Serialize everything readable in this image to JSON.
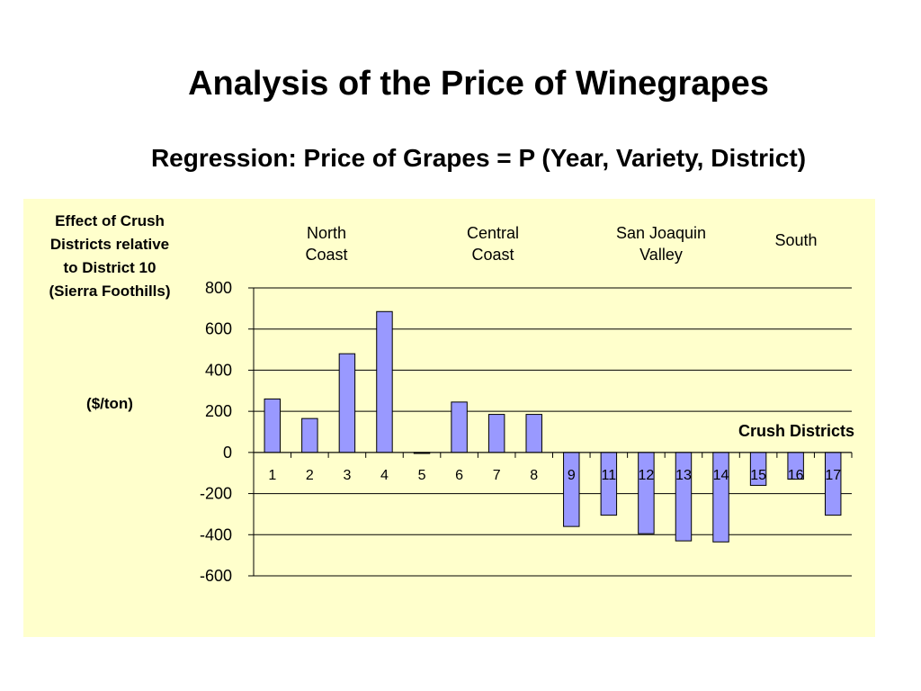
{
  "slide": {
    "title": "Analysis of the Price of Winegrapes",
    "subtitle": "Regression: Price of Grapes = P (Year, Variety, District)"
  },
  "chart_data": {
    "type": "bar",
    "ylabel": "Effect of Crush Districts relative to District 10 (Sierra Foothills)",
    "yunit": "($/ton)",
    "xlabel": "Crush Districts",
    "categories": [
      "1",
      "2",
      "3",
      "4",
      "5",
      "6",
      "7",
      "8",
      "9",
      "11",
      "12",
      "13",
      "14",
      "15",
      "16",
      "17"
    ],
    "values": [
      260,
      165,
      480,
      685,
      -5,
      245,
      185,
      185,
      -360,
      -305,
      -395,
      -430,
      -435,
      -160,
      -130,
      -305
    ],
    "ylim": [
      -600,
      800
    ],
    "yticks": [
      800,
      600,
      400,
      200,
      0,
      -200,
      -400,
      -600
    ],
    "grid": true,
    "bar_color": "#9999ff",
    "background": "#ffffcc",
    "regions": [
      "North Coast",
      "Central Coast",
      "San Joaquin Valley",
      "South"
    ]
  }
}
